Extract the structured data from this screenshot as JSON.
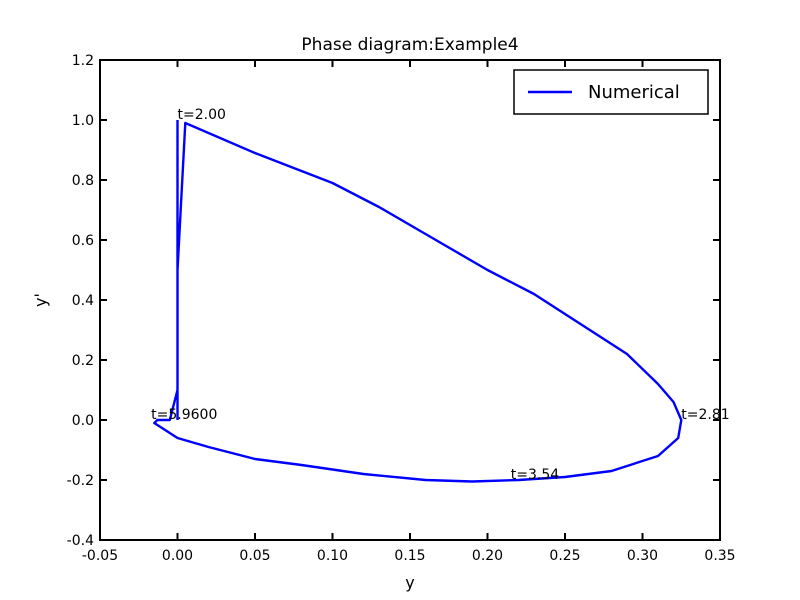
{
  "chart_data": {
    "type": "line",
    "title": "Phase diagram:Example4",
    "xlabel": "y",
    "ylabel": "y'",
    "xlim": [
      -0.05,
      0.35
    ],
    "ylim": [
      -0.4,
      1.2
    ],
    "xticks": [
      "-0.05",
      "0.00",
      "0.05",
      "0.10",
      "0.15",
      "0.20",
      "0.25",
      "0.30",
      "0.35"
    ],
    "yticks": [
      "-0.4",
      "-0.2",
      "0.0",
      "0.2",
      "0.4",
      "0.6",
      "0.8",
      "1.0",
      "1.2"
    ],
    "grid": false,
    "legend": {
      "position": "top-right",
      "entries": [
        "Numerical"
      ]
    },
    "series": [
      {
        "name": "Numerical",
        "color": "#0000ff",
        "x": [
          0.0,
          0.0,
          0.005,
          0.05,
          0.08,
          0.1,
          0.13,
          0.16,
          0.2,
          0.23,
          0.26,
          0.29,
          0.31,
          0.32,
          0.325,
          0.323,
          0.31,
          0.28,
          0.25,
          0.22,
          0.19,
          0.16,
          0.12,
          0.08,
          0.05,
          0.02,
          0.0,
          -0.015,
          -0.013,
          -0.005,
          0.0,
          0.0,
          0.0,
          0.0,
          0.0,
          0.0
        ],
        "y": [
          0.0,
          0.5,
          0.99,
          0.89,
          0.83,
          0.79,
          0.71,
          0.62,
          0.5,
          0.42,
          0.32,
          0.22,
          0.12,
          0.06,
          0.0,
          -0.06,
          -0.12,
          -0.17,
          -0.19,
          -0.2,
          -0.205,
          -0.2,
          -0.18,
          -0.15,
          -0.13,
          -0.09,
          -0.06,
          -0.01,
          0.0,
          0.0,
          0.1,
          0.3,
          0.6,
          0.9,
          0.99,
          1.0
        ]
      }
    ],
    "annotations": [
      {
        "text": "t=2.00",
        "x": 0.0,
        "y": 1.0
      },
      {
        "text": "t=2.81",
        "x": 0.325,
        "y": 0.0
      },
      {
        "text": "t=3.54",
        "x": 0.215,
        "y": -0.2
      },
      {
        "text": "t=5.9600",
        "x": -0.017,
        "y": 0.0
      }
    ]
  }
}
